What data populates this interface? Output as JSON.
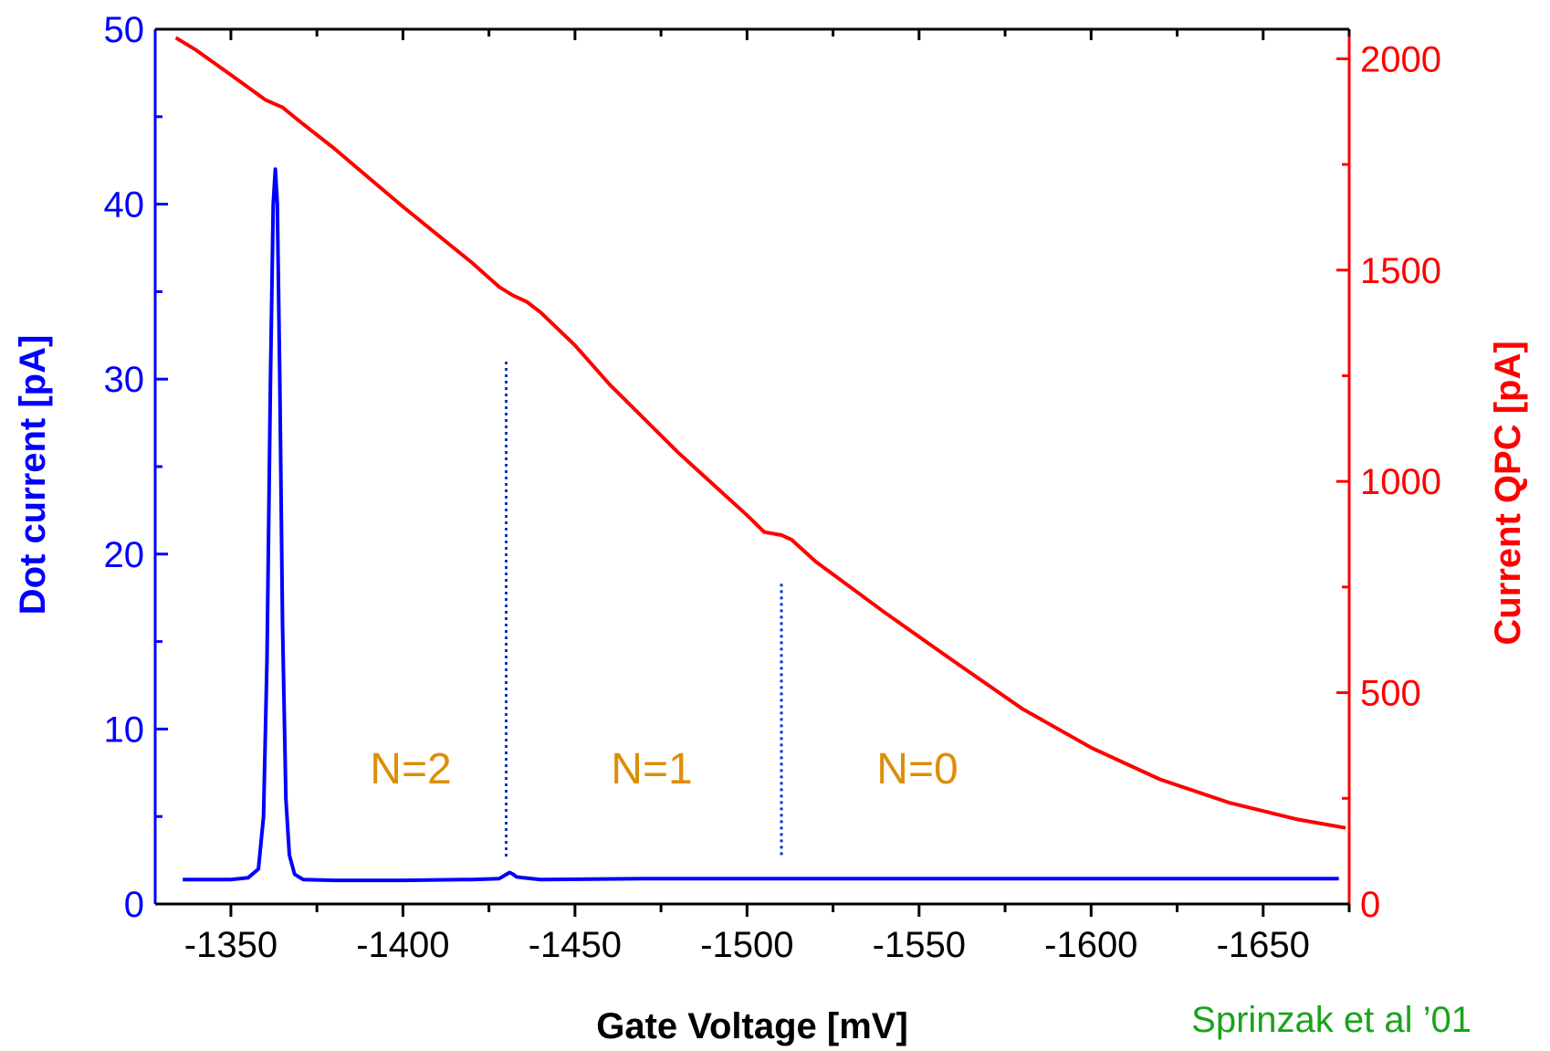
{
  "chart_data": {
    "type": "line",
    "xlabel": "Gate Voltage [mV]",
    "ylabel_left": "Dot current [pA]",
    "ylabel_right": "Current QPC [pA]",
    "x_reversed": true,
    "xlim": [
      -1328,
      -1675
    ],
    "ylim_left": [
      0,
      50
    ],
    "ylim_right": [
      0,
      2070
    ],
    "x_ticks": [
      -1350,
      -1400,
      -1450,
      -1500,
      -1550,
      -1600,
      -1650
    ],
    "x_tick_labels": [
      "-1350",
      "-1400",
      "-1450",
      "-1500",
      "-1550",
      "-1600",
      "-1650"
    ],
    "y_left_ticks": [
      0,
      10,
      20,
      30,
      40,
      50
    ],
    "y_left_tick_labels": [
      "0",
      "10",
      "20",
      "30",
      "40",
      "50"
    ],
    "y_right_ticks": [
      0,
      500,
      1000,
      1500,
      2000
    ],
    "y_right_tick_labels": [
      "0",
      "500",
      "1000",
      "1500",
      "2000"
    ],
    "series": [
      {
        "axis": "left",
        "color": "#0000ff",
        "x": [
          -1336,
          -1350,
          -1355,
          -1358,
          -1359.5,
          -1360.5,
          -1361.5,
          -1362.3,
          -1362.9,
          -1363.5,
          -1364.2,
          -1365,
          -1366,
          -1367,
          -1368.5,
          -1371,
          -1380,
          -1400,
          -1420,
          -1428,
          -1431,
          -1432,
          -1433,
          -1435,
          -1440,
          -1470,
          -1500,
          -1550,
          -1600,
          -1672
        ],
        "y": [
          1.4,
          1.4,
          1.5,
          2.0,
          5,
          14,
          30,
          40,
          42,
          40,
          30,
          16,
          6,
          2.8,
          1.7,
          1.4,
          1.35,
          1.35,
          1.4,
          1.45,
          1.8,
          1.7,
          1.55,
          1.5,
          1.4,
          1.45,
          1.45,
          1.45,
          1.45,
          1.45
        ]
      },
      {
        "axis": "right",
        "color": "#ff0000",
        "x": [
          -1334,
          -1340,
          -1350,
          -1360,
          -1365,
          -1370,
          -1380,
          -1400,
          -1420,
          -1428,
          -1432,
          -1436,
          -1440,
          -1450,
          -1460,
          -1480,
          -1500,
          -1505,
          -1510,
          -1513,
          -1520,
          -1540,
          -1560,
          -1580,
          -1600,
          -1620,
          -1640,
          -1660,
          -1674
        ],
        "y": [
          2050,
          2020,
          1962,
          1903,
          1885,
          1852,
          1788,
          1650,
          1518,
          1460,
          1440,
          1425,
          1400,
          1322,
          1230,
          1068,
          920,
          880,
          873,
          862,
          810,
          690,
          575,
          462,
          370,
          295,
          240,
          200,
          180
        ]
      }
    ],
    "annotations": [
      "N=2",
      "N=1",
      "N=0"
    ],
    "region_boundaries_x": [
      -1430,
      -1510
    ],
    "credit": "Sprinzak et al ’01"
  }
}
